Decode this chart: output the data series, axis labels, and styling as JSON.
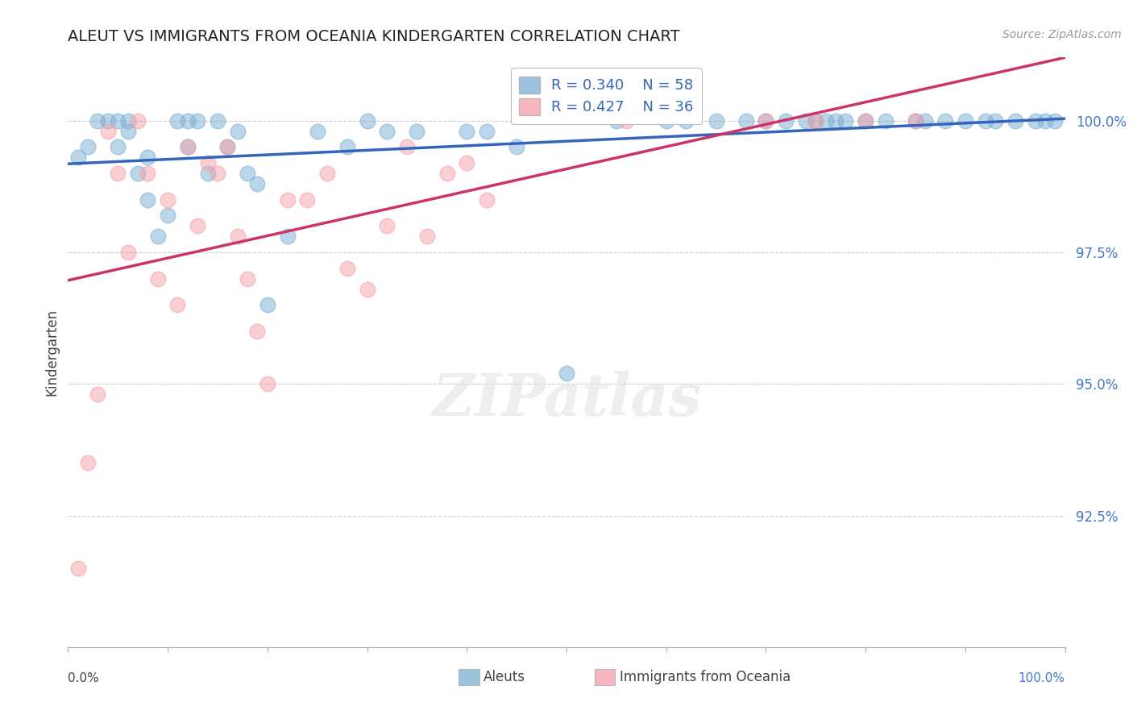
{
  "title": "ALEUT VS IMMIGRANTS FROM OCEANIA KINDERGARTEN CORRELATION CHART",
  "source_text": "Source: ZipAtlas.com",
  "ylabel": "Kindergarten",
  "ytick_labels": [
    "92.5%",
    "95.0%",
    "97.5%",
    "100.0%"
  ],
  "ytick_values": [
    92.5,
    95.0,
    97.5,
    100.0
  ],
  "xmin": 0.0,
  "xmax": 100.0,
  "ymin": 90.0,
  "ymax": 101.2,
  "legend_blue_r": "R = 0.340",
  "legend_blue_n": "N = 58",
  "legend_pink_r": "R = 0.427",
  "legend_pink_n": "N = 36",
  "blue_color": "#7BAFD4",
  "pink_color": "#F4A0A8",
  "trend_blue": "#3366BB",
  "trend_pink": "#CC3366",
  "blue_points_x": [
    1,
    2,
    3,
    4,
    5,
    5,
    6,
    6,
    7,
    8,
    8,
    9,
    10,
    11,
    12,
    12,
    13,
    14,
    15,
    16,
    17,
    18,
    19,
    20,
    22,
    25,
    28,
    30,
    32,
    35,
    40,
    42,
    45,
    50,
    55,
    60,
    62,
    65,
    68,
    70,
    72,
    74,
    75,
    76,
    77,
    78,
    80,
    82,
    85,
    86,
    88,
    90,
    92,
    93,
    95,
    97,
    98,
    99
  ],
  "blue_points_y": [
    99.3,
    99.5,
    100.0,
    100.0,
    100.0,
    99.5,
    100.0,
    99.8,
    99.0,
    99.3,
    98.5,
    97.8,
    98.2,
    100.0,
    100.0,
    99.5,
    100.0,
    99.0,
    100.0,
    99.5,
    99.8,
    99.0,
    98.8,
    96.5,
    97.8,
    99.8,
    99.5,
    100.0,
    99.8,
    99.8,
    99.8,
    99.8,
    99.5,
    95.2,
    100.0,
    100.0,
    100.0,
    100.0,
    100.0,
    100.0,
    100.0,
    100.0,
    100.0,
    100.0,
    100.0,
    100.0,
    100.0,
    100.0,
    100.0,
    100.0,
    100.0,
    100.0,
    100.0,
    100.0,
    100.0,
    100.0,
    100.0,
    100.0
  ],
  "pink_points_x": [
    1,
    2,
    3,
    4,
    5,
    6,
    7,
    8,
    9,
    10,
    11,
    12,
    13,
    14,
    15,
    16,
    17,
    18,
    19,
    20,
    22,
    24,
    26,
    28,
    30,
    32,
    34,
    36,
    38,
    40,
    42,
    56,
    70,
    75,
    80,
    85
  ],
  "pink_points_y": [
    91.5,
    93.5,
    94.8,
    99.8,
    99.0,
    97.5,
    100.0,
    99.0,
    97.0,
    98.5,
    96.5,
    99.5,
    98.0,
    99.2,
    99.0,
    99.5,
    97.8,
    97.0,
    96.0,
    95.0,
    98.5,
    98.5,
    99.0,
    97.2,
    96.8,
    98.0,
    99.5,
    97.8,
    99.0,
    99.2,
    98.5,
    100.0,
    100.0,
    100.0,
    100.0,
    100.0
  ],
  "watermark_text": "ZIPatlas",
  "background_color": "#FFFFFF",
  "xtick_positions": [
    0,
    10,
    20,
    30,
    40,
    50,
    60,
    70,
    80,
    90,
    100
  ]
}
